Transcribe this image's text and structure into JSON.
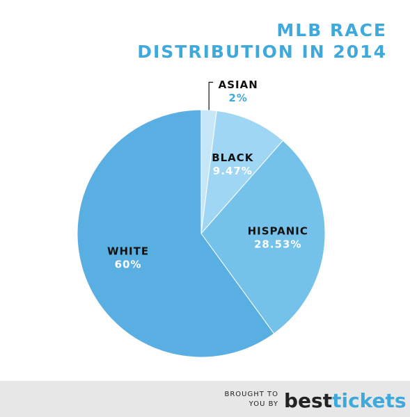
{
  "chart_data": {
    "type": "pie",
    "title": [
      "MLB RACE",
      "DISTRIBUTION IN 2014"
    ],
    "categories": [
      "ASIAN",
      "BLACK",
      "HISPANIC",
      "WHITE"
    ],
    "values": [
      2,
      9.47,
      28.53,
      60
    ],
    "value_labels": [
      "2%",
      "9.47%",
      "28.53%",
      "60%"
    ],
    "colors": [
      "#c6e7f8",
      "#9ed6f3",
      "#74c2ea",
      "#5aafe2"
    ]
  },
  "footer": {
    "text": [
      "BROUGHT TO",
      "YOU BY"
    ],
    "brand": [
      "best",
      "tickets"
    ]
  }
}
